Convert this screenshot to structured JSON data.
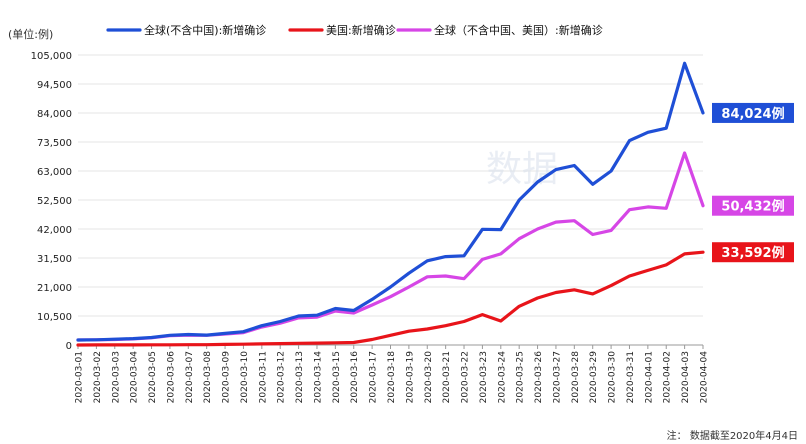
{
  "chart_data": {
    "type": "line",
    "unit_label": "(单位:例)",
    "footnote": "注： 数据截至2020年4月4日",
    "watermark": "数据",
    "ylim": [
      0,
      105000
    ],
    "yticks": [
      0,
      10500,
      21000,
      31500,
      42000,
      52500,
      63000,
      73500,
      84000,
      94500,
      105000
    ],
    "ytick_labels": [
      "0",
      "10,500",
      "21,000",
      "31,500",
      "42,000",
      "52,500",
      "63,000",
      "73,500",
      "84,000",
      "94,500",
      "105,000"
    ],
    "grid": true,
    "legend_position": "top",
    "x": [
      "2020-03-01",
      "2020-03-02",
      "2020-03-03",
      "2020-03-04",
      "2020-03-05",
      "2020-03-06",
      "2020-03-07",
      "2020-03-08",
      "2020-03-09",
      "2020-03-10",
      "2020-03-11",
      "2020-03-12",
      "2020-03-13",
      "2020-03-14",
      "2020-03-15",
      "2020-03-16",
      "2020-03-17",
      "2020-03-18",
      "2020-03-19",
      "2020-03-20",
      "2020-03-21",
      "2020-03-22",
      "2020-03-23",
      "2020-03-24",
      "2020-03-25",
      "2020-03-26",
      "2020-03-27",
      "2020-03-28",
      "2020-03-29",
      "2020-03-30",
      "2020-03-31",
      "2020-04-01",
      "2020-04-02",
      "2020-04-03",
      "2020-04-04"
    ],
    "series": [
      {
        "name": "全球(不含中国):新增确诊",
        "color": "#1f4fd6",
        "end_label": "84,024例",
        "values": [
          1800,
          1900,
          2100,
          2300,
          2700,
          3500,
          3800,
          3600,
          4200,
          4800,
          7000,
          8500,
          10500,
          10800,
          13200,
          12500,
          16500,
          21000,
          26000,
          30500,
          32000,
          32300,
          41900,
          41800,
          52500,
          59000,
          63500,
          65000,
          58200,
          63000,
          74000,
          77000,
          78500,
          102000,
          84024
        ]
      },
      {
        "name": "美国:新增确诊",
        "color": "#e8141a",
        "end_label": "33,592例",
        "values": [
          10,
          20,
          30,
          40,
          60,
          80,
          100,
          100,
          200,
          300,
          400,
          500,
          600,
          700,
          800,
          900,
          2000,
          3500,
          5000,
          5800,
          7000,
          8500,
          11000,
          8700,
          14000,
          17000,
          19000,
          20000,
          18500,
          21500,
          25000,
          27000,
          29000,
          33000,
          33592
        ]
      },
      {
        "name": "全球（不含中国、美国）:新增确诊",
        "color": "#d646e6",
        "end_label": "50,432例",
        "values": [
          1800,
          1900,
          2000,
          2200,
          2600,
          3400,
          3600,
          3500,
          4000,
          4500,
          6500,
          7900,
          9800,
          10100,
          12300,
          11600,
          14500,
          17500,
          21000,
          24700,
          25000,
          24000,
          31000,
          33000,
          38500,
          42000,
          44500,
          45000,
          40000,
          41500,
          49000,
          50000,
          49500,
          69500,
          50432
        ]
      }
    ]
  }
}
